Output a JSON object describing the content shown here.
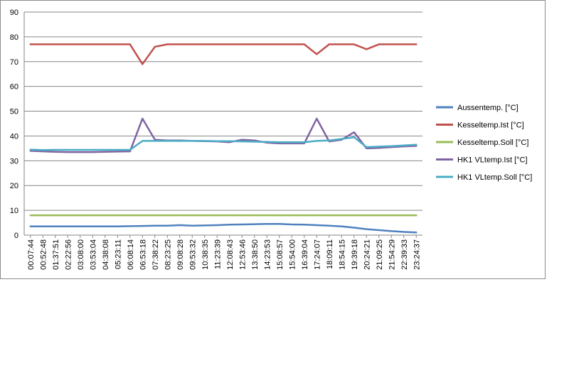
{
  "chart_data": {
    "type": "line",
    "title": "",
    "xlabel": "",
    "ylabel": "",
    "ylim": [
      0,
      90
    ],
    "yticks": [
      0,
      10,
      20,
      30,
      40,
      50,
      60,
      70,
      80,
      90
    ],
    "grid": "horizontal",
    "legend_position": "right",
    "categories": [
      "00:07:44",
      "00:52:48",
      "01:37:51",
      "02:22:56",
      "03:08:00",
      "03:53:04",
      "04:38:08",
      "05:23:11",
      "06:08:14",
      "06:53:18",
      "07:38:22",
      "08:23:25",
      "09:08:28",
      "09:53:32",
      "10:38:35",
      "11:23:39",
      "12:08:43",
      "12:53:46",
      "13:38:50",
      "14:23:53",
      "15:08:57",
      "15:54:00",
      "16:39:04",
      "17:24:07",
      "18:09:11",
      "18:54:15",
      "19:39:18",
      "20:24:21",
      "21:09:25",
      "21:54:29",
      "22:39:33",
      "23:24:37"
    ],
    "series": [
      {
        "name": "Aussentemp. [°C]",
        "color": "#4f81bd",
        "values": [
          3.5,
          3.5,
          3.5,
          3.5,
          3.5,
          3.5,
          3.5,
          3.5,
          3.6,
          3.7,
          3.8,
          3.8,
          4.0,
          3.8,
          3.9,
          4.0,
          4.2,
          4.3,
          4.4,
          4.5,
          4.5,
          4.3,
          4.2,
          4.0,
          3.8,
          3.5,
          3.0,
          2.4,
          2.0,
          1.6,
          1.3,
          1.1
        ]
      },
      {
        "name": "Kesseltemp.Ist [°C]",
        "color": "#c0504d",
        "values": [
          77,
          77,
          77,
          77,
          77,
          77,
          77,
          77,
          77,
          69,
          76,
          77,
          77,
          77,
          77,
          77,
          77,
          77,
          77,
          77,
          77,
          77,
          77,
          73,
          77,
          77,
          77,
          75,
          77,
          77,
          77,
          77
        ]
      },
      {
        "name": "Kesseltemp.Soll [°C]",
        "color": "#9bbb59",
        "values": [
          8,
          8,
          8,
          8,
          8,
          8,
          8,
          8,
          8,
          8,
          8,
          8,
          8,
          8,
          8,
          8,
          8,
          8,
          8,
          8,
          8,
          8,
          8,
          8,
          8,
          8,
          8,
          8,
          8,
          8,
          8,
          8
        ]
      },
      {
        "name": "HK1 VLtemp.Ist [°C]",
        "color": "#8064a2",
        "values": [
          34,
          33.8,
          33.6,
          33.5,
          33.5,
          33.5,
          33.6,
          33.7,
          33.8,
          47,
          38.5,
          38.2,
          38.2,
          38.0,
          37.9,
          37.8,
          37.5,
          38.5,
          38.2,
          37.3,
          37.0,
          37.0,
          37.0,
          47,
          37.8,
          38.5,
          41.5,
          35.0,
          35.2,
          35.5,
          35.8,
          36.0
        ]
      },
      {
        "name": "HK1 VLtemp.Soll [°C]",
        "color": "#4bacc6",
        "values": [
          34.5,
          34.3,
          34.4,
          34.4,
          34.4,
          34.4,
          34.4,
          34.4,
          34.4,
          38.0,
          38.0,
          38.0,
          38.0,
          38.0,
          38.0,
          37.9,
          37.9,
          37.8,
          37.7,
          37.6,
          37.5,
          37.5,
          37.5,
          38.0,
          38.2,
          38.8,
          39.5,
          35.5,
          35.7,
          35.9,
          36.2,
          36.5
        ]
      }
    ]
  }
}
